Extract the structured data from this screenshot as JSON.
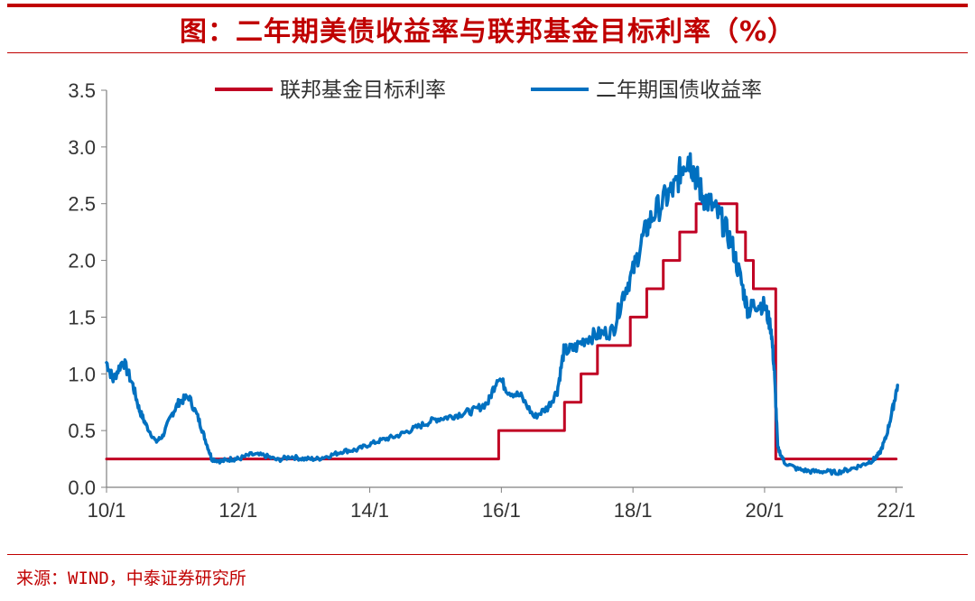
{
  "title": "图：二年期美债收益率与联邦基金目标利率（%）",
  "source": "来源：WIND，中泰证券研究所",
  "colors": {
    "accent": "#c00000",
    "fed": "#c00023",
    "yield": "#0070c0",
    "axis": "#808080"
  },
  "chart_data": {
    "type": "line",
    "title": "图：二年期美债收益率与联邦基金目标利率（%）",
    "x_unit": "year",
    "xlim": [
      2010.0,
      2022.1
    ],
    "ylim": [
      0,
      3.5
    ],
    "y_ticks": [
      "0.0",
      "0.5",
      "1.0",
      "1.5",
      "2.0",
      "2.5",
      "3.0",
      "3.5"
    ],
    "x_ticks": [
      {
        "label": "10/1",
        "x": 2010.0
      },
      {
        "label": "12/1",
        "x": 2012.0
      },
      {
        "label": "14/1",
        "x": 2014.0
      },
      {
        "label": "16/1",
        "x": 2016.0
      },
      {
        "label": "18/1",
        "x": 2018.0
      },
      {
        "label": "20/1",
        "x": 2020.0
      },
      {
        "label": "22/1",
        "x": 2022.0
      }
    ],
    "grid": false,
    "legend_position": "top",
    "series": [
      {
        "name": "联邦基金目标利率",
        "color": "#c00023",
        "step": true,
        "points": [
          [
            2010.0,
            0.25
          ],
          [
            2015.96,
            0.25
          ],
          [
            2015.96,
            0.5
          ],
          [
            2016.96,
            0.5
          ],
          [
            2016.96,
            0.75
          ],
          [
            2017.21,
            0.75
          ],
          [
            2017.21,
            1.0
          ],
          [
            2017.46,
            1.0
          ],
          [
            2017.46,
            1.25
          ],
          [
            2017.96,
            1.25
          ],
          [
            2017.96,
            1.5
          ],
          [
            2018.21,
            1.5
          ],
          [
            2018.21,
            1.75
          ],
          [
            2018.46,
            1.75
          ],
          [
            2018.46,
            2.0
          ],
          [
            2018.71,
            2.0
          ],
          [
            2018.71,
            2.25
          ],
          [
            2018.96,
            2.25
          ],
          [
            2018.96,
            2.5
          ],
          [
            2019.58,
            2.5
          ],
          [
            2019.58,
            2.25
          ],
          [
            2019.71,
            2.25
          ],
          [
            2019.71,
            2.0
          ],
          [
            2019.83,
            2.0
          ],
          [
            2019.83,
            1.75
          ],
          [
            2020.17,
            1.75
          ],
          [
            2020.17,
            0.25
          ],
          [
            2022.0,
            0.25
          ]
        ]
      },
      {
        "name": "二年期国债收益率",
        "color": "#0070c0",
        "step": false,
        "points": [
          [
            2010.0,
            1.1
          ],
          [
            2010.1,
            0.95
          ],
          [
            2010.25,
            1.12
          ],
          [
            2010.4,
            0.9
          ],
          [
            2010.5,
            0.68
          ],
          [
            2010.6,
            0.55
          ],
          [
            2010.75,
            0.4
          ],
          [
            2010.85,
            0.45
          ],
          [
            2011.0,
            0.65
          ],
          [
            2011.1,
            0.75
          ],
          [
            2011.25,
            0.8
          ],
          [
            2011.4,
            0.6
          ],
          [
            2011.5,
            0.42
          ],
          [
            2011.6,
            0.25
          ],
          [
            2011.75,
            0.23
          ],
          [
            2011.9,
            0.25
          ],
          [
            2012.0,
            0.25
          ],
          [
            2012.2,
            0.29
          ],
          [
            2012.4,
            0.28
          ],
          [
            2012.6,
            0.24
          ],
          [
            2012.8,
            0.27
          ],
          [
            2013.0,
            0.25
          ],
          [
            2013.2,
            0.25
          ],
          [
            2013.4,
            0.28
          ],
          [
            2013.6,
            0.32
          ],
          [
            2013.8,
            0.33
          ],
          [
            2014.0,
            0.38
          ],
          [
            2014.2,
            0.42
          ],
          [
            2014.4,
            0.45
          ],
          [
            2014.6,
            0.5
          ],
          [
            2014.8,
            0.55
          ],
          [
            2015.0,
            0.6
          ],
          [
            2015.2,
            0.62
          ],
          [
            2015.4,
            0.65
          ],
          [
            2015.6,
            0.68
          ],
          [
            2015.8,
            0.75
          ],
          [
            2015.95,
            0.98
          ],
          [
            2016.1,
            0.85
          ],
          [
            2016.3,
            0.8
          ],
          [
            2016.5,
            0.62
          ],
          [
            2016.7,
            0.7
          ],
          [
            2016.85,
            0.85
          ],
          [
            2016.95,
            1.2
          ],
          [
            2017.1,
            1.22
          ],
          [
            2017.3,
            1.32
          ],
          [
            2017.5,
            1.35
          ],
          [
            2017.7,
            1.38
          ],
          [
            2017.85,
            1.7
          ],
          [
            2018.0,
            1.9
          ],
          [
            2018.15,
            2.2
          ],
          [
            2018.3,
            2.4
          ],
          [
            2018.5,
            2.55
          ],
          [
            2018.65,
            2.65
          ],
          [
            2018.75,
            2.85
          ],
          [
            2018.85,
            2.92
          ],
          [
            2018.95,
            2.75
          ],
          [
            2019.05,
            2.58
          ],
          [
            2019.2,
            2.48
          ],
          [
            2019.35,
            2.35
          ],
          [
            2019.5,
            2.15
          ],
          [
            2019.65,
            1.8
          ],
          [
            2019.75,
            1.55
          ],
          [
            2019.85,
            1.62
          ],
          [
            2020.0,
            1.6
          ],
          [
            2020.1,
            1.4
          ],
          [
            2020.15,
            1.0
          ],
          [
            2020.2,
            0.35
          ],
          [
            2020.3,
            0.22
          ],
          [
            2020.5,
            0.16
          ],
          [
            2020.7,
            0.14
          ],
          [
            2020.9,
            0.14
          ],
          [
            2021.1,
            0.13
          ],
          [
            2021.3,
            0.16
          ],
          [
            2021.5,
            0.2
          ],
          [
            2021.65,
            0.24
          ],
          [
            2021.75,
            0.3
          ],
          [
            2021.85,
            0.45
          ],
          [
            2021.95,
            0.7
          ],
          [
            2022.02,
            0.9
          ]
        ]
      }
    ]
  }
}
